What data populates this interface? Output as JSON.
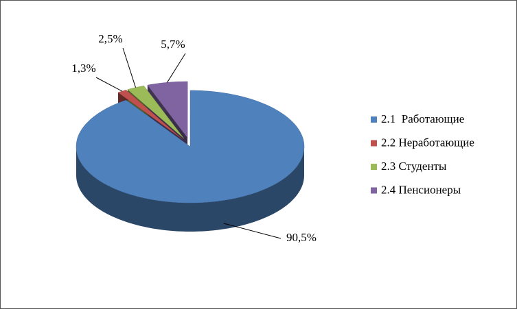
{
  "chart_data": {
    "type": "pie3d",
    "categories": [
      "2.1  Работающие",
      "2.2 Неработающие",
      "2.3 Студенты",
      "2.4 Пенсионеры"
    ],
    "values": [
      90.5,
      1.3,
      2.5,
      5.7
    ],
    "value_labels": [
      "90,5%",
      "1,3%",
      "2,5%",
      "5,7%"
    ],
    "colors": [
      "#4f81bd",
      "#c0504d",
      "#9bbb59",
      "#8064a2"
    ],
    "legend": "right"
  }
}
